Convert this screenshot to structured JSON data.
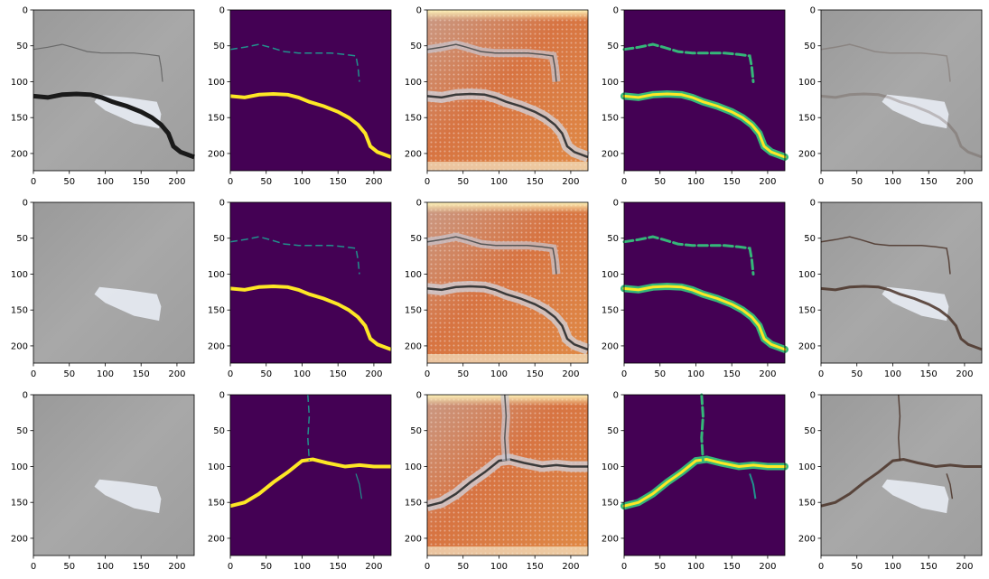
{
  "chart_data": {
    "type": "image_grid",
    "rows": 3,
    "cols": 5,
    "x_ticks": [
      0,
      50,
      100,
      150,
      200
    ],
    "y_ticks": [
      50,
      100,
      150,
      200
    ],
    "xlim": [
      0,
      224
    ],
    "ylim": [
      224,
      0
    ],
    "axis_tick_label_zero": "0",
    "colors": {
      "viridis_dark": "#440154",
      "viridis_yellow": "#fde725",
      "viridis_green": "#35b779",
      "viridis_teal": "#21918c",
      "gray_surface": "#a4a4a4",
      "patch_white": "#e8ecf4",
      "crack_dark": "#1a1a1a",
      "heat_orange": "#d26a3a"
    },
    "panels": [
      {
        "kind": "photo",
        "crack": "A",
        "show_crack": true
      },
      {
        "kind": "mask",
        "crack": "A"
      },
      {
        "kind": "feature",
        "crack": "A"
      },
      {
        "kind": "prob",
        "crack": "A"
      },
      {
        "kind": "overlay",
        "crack": "A",
        "faint": true
      },
      {
        "kind": "photo",
        "crack": "A",
        "show_crack": false
      },
      {
        "kind": "mask",
        "crack": "A"
      },
      {
        "kind": "feature",
        "crack": "A"
      },
      {
        "kind": "prob",
        "crack": "A"
      },
      {
        "kind": "overlay",
        "crack": "A",
        "faint": false
      },
      {
        "kind": "photo",
        "crack": "B",
        "show_crack": false
      },
      {
        "kind": "mask",
        "crack": "B"
      },
      {
        "kind": "feature",
        "crack": "B"
      },
      {
        "kind": "prob",
        "crack": "B"
      },
      {
        "kind": "overlay",
        "crack": "B",
        "faint": false
      }
    ]
  }
}
